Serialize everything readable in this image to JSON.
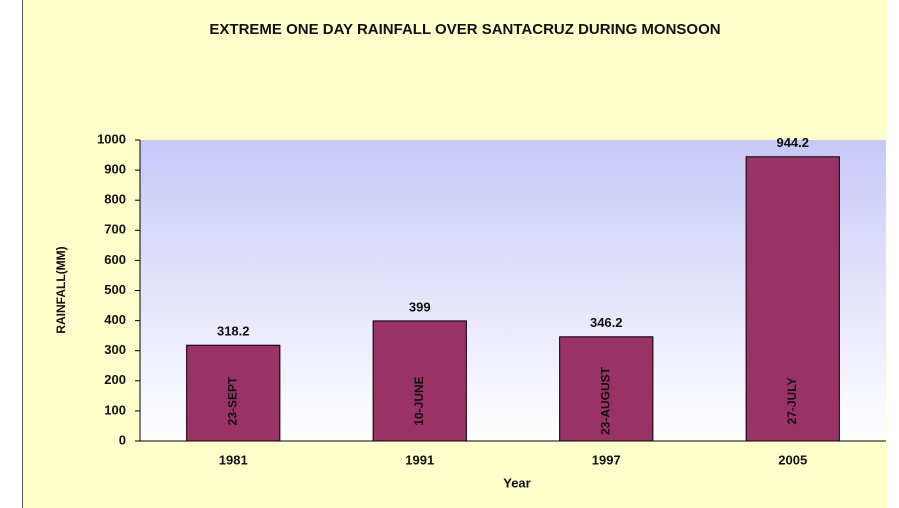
{
  "chart_data": {
    "type": "bar",
    "title": "EXTREME ONE DAY RAINFALL OVER SANTACRUZ DURING MONSOON",
    "categories": [
      "1981",
      "1991",
      "1997",
      "2005"
    ],
    "values": [
      318.2,
      399,
      346.2,
      944.2
    ],
    "bar_annotations": [
      "23-SEPT",
      "10-JUNE",
      "23-AUGUST",
      "27-JULY"
    ],
    "color": "#993366",
    "x_label": "Year",
    "y_label": "RAINFALL(MM)",
    "ylim": [
      0,
      1000
    ],
    "yticks": [
      0,
      100,
      200,
      300,
      400,
      500,
      600,
      700,
      800,
      900,
      1000
    ],
    "grid": false
  }
}
